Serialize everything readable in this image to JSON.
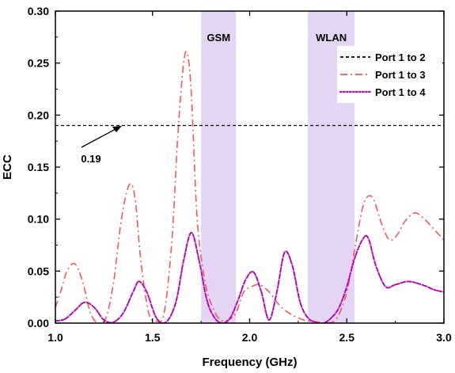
{
  "chart_data": {
    "type": "line",
    "xlabel": "Frequency (GHz)",
    "ylabel": "ECC",
    "xlim": [
      1.0,
      3.0
    ],
    "ylim": [
      0.0,
      0.3
    ],
    "xticks": [
      "1.0",
      "1.5",
      "2.0",
      "2.5",
      "3.0"
    ],
    "xtick_values": [
      1.0,
      1.5,
      2.0,
      2.5,
      3.0
    ],
    "yticks": [
      "0.00",
      "0.05",
      "0.10",
      "0.15",
      "0.20",
      "0.25",
      "0.30"
    ],
    "ytick_values": [
      0.0,
      0.05,
      0.1,
      0.15,
      0.2,
      0.25,
      0.3
    ],
    "grid": false,
    "legend_position": "top-right",
    "bands": [
      {
        "label": "GSM",
        "x_range": [
          1.75,
          1.93
        ],
        "color": "#e5d5f5"
      },
      {
        "label": "WLAN",
        "x_range": [
          2.3,
          2.54
        ],
        "color": "#e5d5f5"
      }
    ],
    "reference": {
      "label": "0.19",
      "value": 0.19
    },
    "series": [
      {
        "name": "Port 1 to 2",
        "color": "#000000",
        "dash": "dashed",
        "x": [
          1.0,
          1.05,
          1.1,
          1.15,
          1.2,
          1.25,
          1.3,
          1.35,
          1.4,
          1.43,
          1.47,
          1.52,
          1.57,
          1.62,
          1.66,
          1.7,
          1.74,
          1.78,
          1.82,
          1.86,
          1.9,
          1.94,
          1.98,
          2.02,
          2.06,
          2.1,
          2.14,
          2.18,
          2.22,
          2.26,
          2.3,
          2.34,
          2.38,
          2.42,
          2.46,
          2.5,
          2.54,
          2.58,
          2.61,
          2.65,
          2.7,
          2.75,
          2.82,
          2.9,
          2.95,
          3.0
        ],
        "values": [
          0.002,
          0.004,
          0.012,
          0.02,
          0.015,
          0.003,
          0.001,
          0.01,
          0.03,
          0.04,
          0.03,
          0.005,
          0.001,
          0.02,
          0.06,
          0.087,
          0.06,
          0.022,
          0.005,
          0.0,
          0.005,
          0.022,
          0.042,
          0.049,
          0.03,
          0.003,
          0.03,
          0.068,
          0.055,
          0.02,
          0.005,
          0.001,
          0.0,
          0.005,
          0.015,
          0.035,
          0.062,
          0.08,
          0.082,
          0.055,
          0.035,
          0.037,
          0.04,
          0.036,
          0.032,
          0.03
        ]
      },
      {
        "name": "Port 1 to 3",
        "color": "#f25a5a",
        "dash": "dashdot",
        "x": [
          1.0,
          1.03,
          1.06,
          1.1,
          1.14,
          1.18,
          1.22,
          1.26,
          1.3,
          1.34,
          1.38,
          1.41,
          1.44,
          1.48,
          1.52,
          1.56,
          1.6,
          1.63,
          1.66,
          1.68,
          1.7,
          1.73,
          1.77,
          1.81,
          1.85,
          1.89,
          1.93,
          1.97,
          2.01,
          2.05,
          2.1,
          2.15,
          2.2,
          2.25,
          2.3,
          2.35,
          2.4,
          2.45,
          2.5,
          2.54,
          2.58,
          2.61,
          2.64,
          2.68,
          2.72,
          2.76,
          2.8,
          2.85,
          2.9,
          2.95,
          3.0
        ],
        "values": [
          0.015,
          0.032,
          0.05,
          0.057,
          0.04,
          0.01,
          0.0,
          0.005,
          0.04,
          0.1,
          0.133,
          0.12,
          0.06,
          0.01,
          0.002,
          0.01,
          0.08,
          0.18,
          0.25,
          0.258,
          0.22,
          0.1,
          0.04,
          0.015,
          0.003,
          0.003,
          0.01,
          0.03,
          0.035,
          0.037,
          0.03,
          0.018,
          0.01,
          0.005,
          0.002,
          0.001,
          0.0,
          0.005,
          0.03,
          0.07,
          0.11,
          0.122,
          0.118,
          0.095,
          0.08,
          0.085,
          0.098,
          0.106,
          0.1,
          0.09,
          0.08
        ]
      },
      {
        "name": "Port 1 to 4",
        "color": "#cc00cc",
        "dash": "dotted",
        "x": [
          1.0,
          1.05,
          1.1,
          1.15,
          1.2,
          1.25,
          1.3,
          1.35,
          1.4,
          1.43,
          1.47,
          1.52,
          1.57,
          1.62,
          1.66,
          1.7,
          1.74,
          1.78,
          1.82,
          1.86,
          1.9,
          1.94,
          1.98,
          2.02,
          2.06,
          2.1,
          2.14,
          2.18,
          2.22,
          2.26,
          2.3,
          2.34,
          2.38,
          2.42,
          2.46,
          2.5,
          2.54,
          2.58,
          2.61,
          2.65,
          2.7,
          2.75,
          2.82,
          2.9,
          2.95,
          3.0
        ],
        "values": [
          0.002,
          0.004,
          0.012,
          0.02,
          0.015,
          0.003,
          0.001,
          0.01,
          0.03,
          0.04,
          0.03,
          0.005,
          0.001,
          0.02,
          0.06,
          0.087,
          0.06,
          0.022,
          0.005,
          0.0,
          0.005,
          0.022,
          0.042,
          0.049,
          0.03,
          0.003,
          0.03,
          0.068,
          0.055,
          0.02,
          0.005,
          0.001,
          0.0,
          0.005,
          0.015,
          0.035,
          0.062,
          0.08,
          0.082,
          0.055,
          0.035,
          0.037,
          0.04,
          0.036,
          0.032,
          0.03
        ]
      }
    ]
  }
}
